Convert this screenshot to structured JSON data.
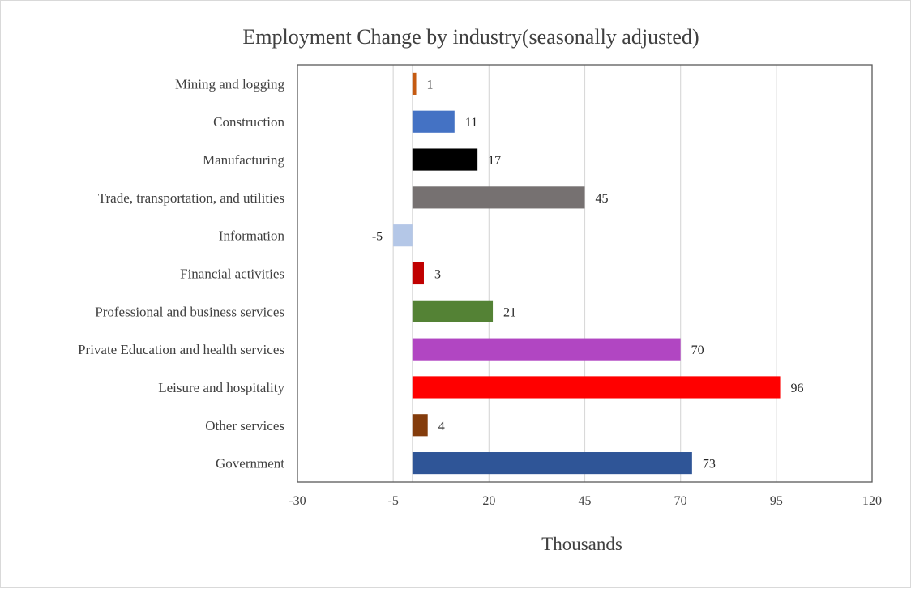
{
  "chart_data": {
    "type": "bar",
    "orientation": "horizontal",
    "title": "Employment Change by industry(seasonally adjusted)",
    "xlabel": "Thousands",
    "ylabel": "",
    "xlim": [
      -30,
      120
    ],
    "xticks": [
      -30,
      -5,
      20,
      45,
      70,
      95,
      120
    ],
    "grid": true,
    "legend": "none",
    "categories": [
      "Mining and logging",
      "Construction",
      "Manufacturing",
      "Trade, transportation, and utilities",
      "Information",
      "Financial activities",
      "Professional and business services",
      "Private Education and health services",
      "Leisure and hospitality",
      "Other services",
      "Government"
    ],
    "values": [
      1,
      11,
      17,
      45,
      -5,
      3,
      21,
      70,
      96,
      4,
      73
    ],
    "colors": [
      "#C55A11",
      "#4472C4",
      "#000000",
      "#767171",
      "#B4C7E7",
      "#C00000",
      "#548235",
      "#B146C2",
      "#FF0000",
      "#843C0C",
      "#2F5597"
    ]
  }
}
